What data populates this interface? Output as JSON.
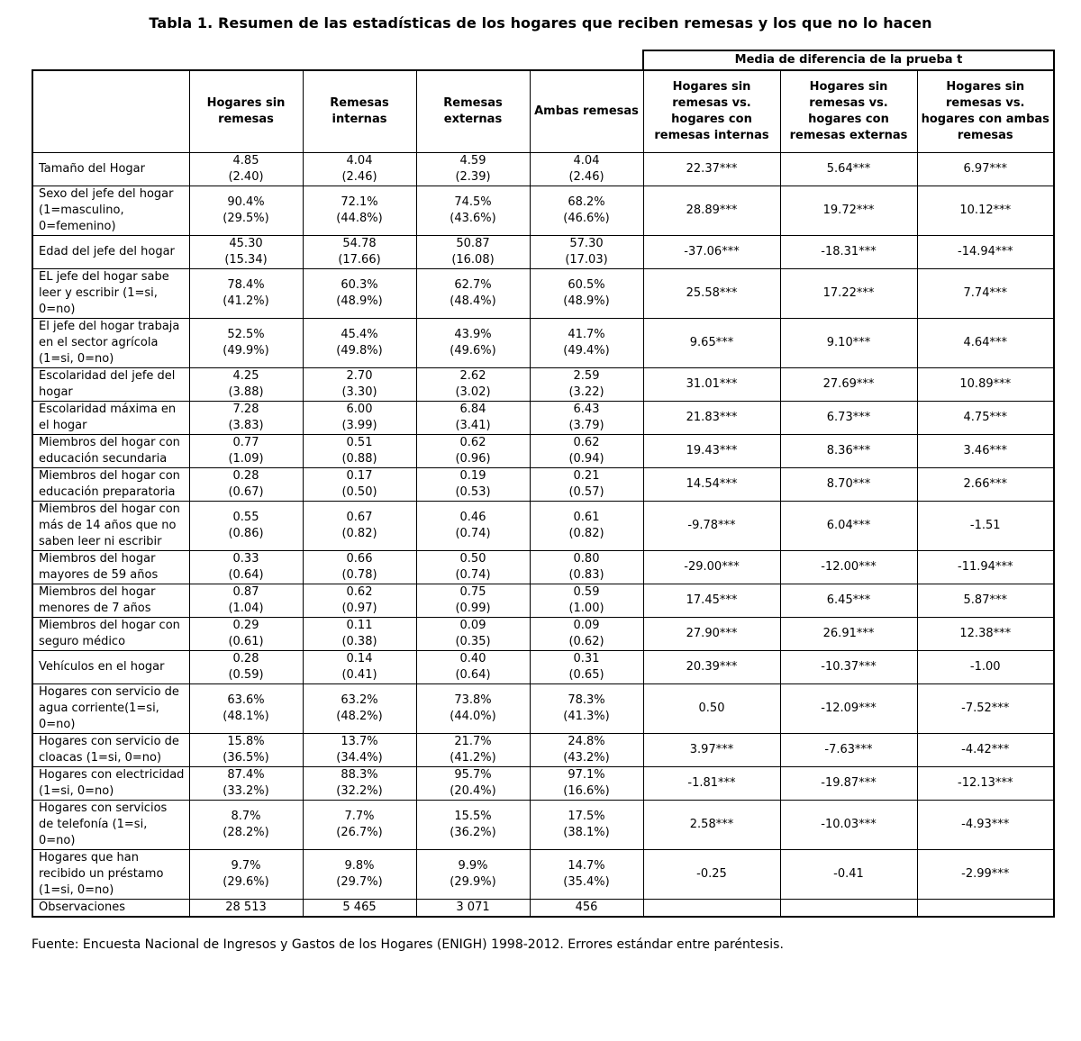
{
  "title": "Tabla 1. Resumen de las estadísticas de los hogares que reciben remesas y los que no lo hacen",
  "colors": {
    "text": "#000000",
    "background": "#ffffff",
    "border": "#000000"
  },
  "table": {
    "t_test_group_label": "Media de diferencia de la prueba t",
    "columns": [
      "",
      "Hogares sin remesas",
      "Remesas internas",
      "Remesas externas",
      "Ambas remesas",
      "Hogares sin remesas vs. hogares con remesas internas",
      "Hogares sin remesas vs. hogares con remesas externas",
      "Hogares sin remesas vs. hogares con ambas remesas"
    ],
    "rows": [
      {
        "label": "Tamaño del Hogar",
        "cells": [
          {
            "mean": "4.85",
            "sd": "(2.40)"
          },
          {
            "mean": "4.04",
            "sd": "(2.46)"
          },
          {
            "mean": "4.59",
            "sd": "(2.39)"
          },
          {
            "mean": "4.04",
            "sd": "(2.46)"
          }
        ],
        "t_tests": [
          "22.37***",
          "5.64***",
          "6.97***"
        ]
      },
      {
        "label": "Sexo del jefe del hogar (1=masculino, 0=femenino)",
        "cells": [
          {
            "mean": "90.4%",
            "sd": "(29.5%)"
          },
          {
            "mean": "72.1%",
            "sd": "(44.8%)"
          },
          {
            "mean": "74.5%",
            "sd": "(43.6%)"
          },
          {
            "mean": "68.2%",
            "sd": "(46.6%)"
          }
        ],
        "t_tests": [
          "28.89***",
          "19.72***",
          "10.12***"
        ]
      },
      {
        "label": "Edad del jefe del hogar",
        "cells": [
          {
            "mean": "45.30",
            "sd": "(15.34)"
          },
          {
            "mean": "54.78",
            "sd": "(17.66)"
          },
          {
            "mean": "50.87",
            "sd": "(16.08)"
          },
          {
            "mean": "57.30",
            "sd": "(17.03)"
          }
        ],
        "t_tests": [
          "-37.06***",
          "-18.31***",
          "-14.94***"
        ]
      },
      {
        "label": "EL jefe del hogar sabe leer y escribir (1=si, 0=no)",
        "cells": [
          {
            "mean": "78.4%",
            "sd": "(41.2%)"
          },
          {
            "mean": "60.3%",
            "sd": "(48.9%)"
          },
          {
            "mean": "62.7%",
            "sd": "(48.4%)"
          },
          {
            "mean": "60.5%",
            "sd": "(48.9%)"
          }
        ],
        "t_tests": [
          "25.58***",
          "17.22***",
          "7.74***"
        ]
      },
      {
        "label": "El jefe del hogar trabaja en el sector agrícola (1=si, 0=no)",
        "cells": [
          {
            "mean": "52.5%",
            "sd": "(49.9%)"
          },
          {
            "mean": "45.4%",
            "sd": "(49.8%)"
          },
          {
            "mean": "43.9%",
            "sd": "(49.6%)"
          },
          {
            "mean": "41.7%",
            "sd": "(49.4%)"
          }
        ],
        "t_tests": [
          "9.65***",
          "9.10***",
          "4.64***"
        ]
      },
      {
        "label": "Escolaridad del jefe del hogar",
        "cells": [
          {
            "mean": "4.25",
            "sd": "(3.88)"
          },
          {
            "mean": "2.70",
            "sd": "(3.30)"
          },
          {
            "mean": "2.62",
            "sd": "(3.02)"
          },
          {
            "mean": "2.59",
            "sd": "(3.22)"
          }
        ],
        "t_tests": [
          "31.01***",
          "27.69***",
          "10.89***"
        ]
      },
      {
        "label": "Escolaridad máxima en el hogar",
        "cells": [
          {
            "mean": "7.28",
            "sd": "(3.83)"
          },
          {
            "mean": "6.00",
            "sd": "(3.99)"
          },
          {
            "mean": "6.84",
            "sd": "(3.41)"
          },
          {
            "mean": "6.43",
            "sd": "(3.79)"
          }
        ],
        "t_tests": [
          "21.83***",
          "6.73***",
          "4.75***"
        ]
      },
      {
        "label": "Miembros del hogar con educación secundaria",
        "cells": [
          {
            "mean": "0.77",
            "sd": "(1.09)"
          },
          {
            "mean": "0.51",
            "sd": "(0.88)"
          },
          {
            "mean": "0.62",
            "sd": "(0.96)"
          },
          {
            "mean": "0.62",
            "sd": "(0.94)"
          }
        ],
        "t_tests": [
          "19.43***",
          "8.36***",
          "3.46***"
        ]
      },
      {
        "label": "Miembros del hogar con educación preparatoria",
        "cells": [
          {
            "mean": "0.28",
            "sd": "(0.67)"
          },
          {
            "mean": "0.17",
            "sd": "(0.50)"
          },
          {
            "mean": "0.19",
            "sd": "(0.53)"
          },
          {
            "mean": "0.21",
            "sd": "(0.57)"
          }
        ],
        "t_tests": [
          "14.54***",
          "8.70***",
          "2.66***"
        ]
      },
      {
        "label": "Miembros del hogar con más de 14 años que no saben leer ni escribir",
        "cells": [
          {
            "mean": "0.55",
            "sd": "(0.86)"
          },
          {
            "mean": "0.67",
            "sd": "(0.82)"
          },
          {
            "mean": "0.46",
            "sd": "(0.74)"
          },
          {
            "mean": "0.61",
            "sd": "(0.82)"
          }
        ],
        "t_tests": [
          "-9.78***",
          "6.04***",
          "-1.51"
        ]
      },
      {
        "label": "Miembros del hogar mayores de 59 años",
        "cells": [
          {
            "mean": "0.33",
            "sd": "(0.64)"
          },
          {
            "mean": "0.66",
            "sd": "(0.78)"
          },
          {
            "mean": "0.50",
            "sd": "(0.74)"
          },
          {
            "mean": "0.80",
            "sd": "(0.83)"
          }
        ],
        "t_tests": [
          "-29.00***",
          "-12.00***",
          "-11.94***"
        ]
      },
      {
        "label": "Miembros del hogar menores de 7 años",
        "cells": [
          {
            "mean": "0.87",
            "sd": "(1.04)"
          },
          {
            "mean": "0.62",
            "sd": "(0.97)"
          },
          {
            "mean": "0.75",
            "sd": "(0.99)"
          },
          {
            "mean": "0.59",
            "sd": "(1.00)"
          }
        ],
        "t_tests": [
          "17.45***",
          "6.45***",
          "5.87***"
        ]
      },
      {
        "label": "Miembros del hogar con seguro médico",
        "cells": [
          {
            "mean": "0.29",
            "sd": "(0.61)"
          },
          {
            "mean": "0.11",
            "sd": "(0.38)"
          },
          {
            "mean": "0.09",
            "sd": "(0.35)"
          },
          {
            "mean": "0.09",
            "sd": "(0.62)"
          }
        ],
        "t_tests": [
          "27.90***",
          "26.91***",
          "12.38***"
        ]
      },
      {
        "label": "Vehículos en el hogar",
        "cells": [
          {
            "mean": "0.28",
            "sd": "(0.59)"
          },
          {
            "mean": "0.14",
            "sd": "(0.41)"
          },
          {
            "mean": "0.40",
            "sd": "(0.64)"
          },
          {
            "mean": "0.31",
            "sd": "(0.65)"
          }
        ],
        "t_tests": [
          "20.39***",
          "-10.37***",
          "-1.00"
        ]
      },
      {
        "label": "Hogares con servicio de agua corriente(1=si, 0=no)",
        "cells": [
          {
            "mean": "63.6%",
            "sd": "(48.1%)"
          },
          {
            "mean": "63.2%",
            "sd": "(48.2%)"
          },
          {
            "mean": "73.8%",
            "sd": "(44.0%)"
          },
          {
            "mean": "78.3%",
            "sd": "(41.3%)"
          }
        ],
        "t_tests": [
          "0.50",
          "-12.09***",
          "-7.52***"
        ]
      },
      {
        "label": "Hogares con servicio de cloacas (1=si, 0=no)",
        "cells": [
          {
            "mean": "15.8%",
            "sd": "(36.5%)"
          },
          {
            "mean": "13.7%",
            "sd": "(34.4%)"
          },
          {
            "mean": "21.7%",
            "sd": "(41.2%)"
          },
          {
            "mean": "24.8%",
            "sd": "(43.2%)"
          }
        ],
        "t_tests": [
          "3.97***",
          "-7.63***",
          "-4.42***"
        ]
      },
      {
        "label": "Hogares con electricidad (1=si, 0=no)",
        "cells": [
          {
            "mean": "87.4%",
            "sd": "(33.2%)"
          },
          {
            "mean": "88.3%",
            "sd": "(32.2%)"
          },
          {
            "mean": "95.7%",
            "sd": "(20.4%)"
          },
          {
            "mean": "97.1%",
            "sd": "(16.6%)"
          }
        ],
        "t_tests": [
          "-1.81***",
          "-19.87***",
          "-12.13***"
        ]
      },
      {
        "label": "Hogares con servicios de telefonía (1=si, 0=no)",
        "cells": [
          {
            "mean": "8.7%",
            "sd": "(28.2%)"
          },
          {
            "mean": "7.7%",
            "sd": "(26.7%)"
          },
          {
            "mean": "15.5%",
            "sd": "(36.2%)"
          },
          {
            "mean": "17.5%",
            "sd": "(38.1%)"
          }
        ],
        "t_tests": [
          "2.58***",
          "-10.03***",
          "-4.93***"
        ]
      },
      {
        "label": "Hogares que han recibido un préstamo (1=si, 0=no)",
        "cells": [
          {
            "mean": "9.7%",
            "sd": "(29.6%)"
          },
          {
            "mean": "9.8%",
            "sd": "(29.7%)"
          },
          {
            "mean": "9.9%",
            "sd": "(29.9%)"
          },
          {
            "mean": "14.7%",
            "sd": "(35.4%)"
          }
        ],
        "t_tests": [
          "-0.25",
          "-0.41",
          "-2.99***"
        ]
      },
      {
        "label": "Observaciones",
        "cells": [
          {
            "mean": "28 513"
          },
          {
            "mean": "5 465"
          },
          {
            "mean": "3 071"
          },
          {
            "mean": "456"
          }
        ],
        "t_tests": [
          "",
          "",
          ""
        ]
      }
    ]
  },
  "footer": "Fuente: Encuesta Nacional de Ingresos y Gastos de los Hogares (ENIGH) 1998-2012. Errores estándar entre paréntesis."
}
